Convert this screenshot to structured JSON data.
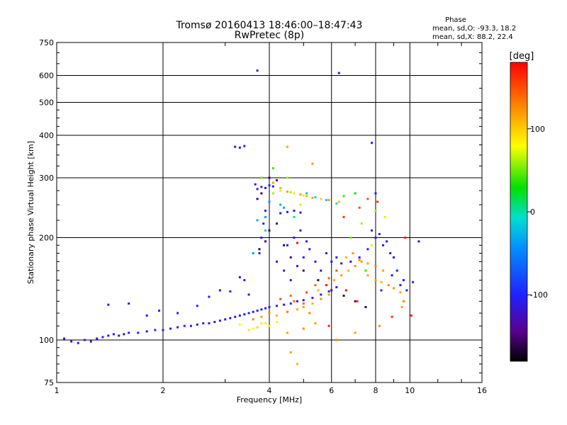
{
  "chart_data": {
    "type": "scatter",
    "title": "Tromsø 20160413 18:46:00–18:47:43",
    "subtitle": "RwPretec (8p)",
    "xlabel": "Frequency [MHz]",
    "ylabel": "Stationary phase Virtual Height [km]",
    "x_scale": "log",
    "y_scale": "log",
    "xlim": [
      1,
      16
    ],
    "ylim": [
      75,
      750
    ],
    "x_ticks": [
      1,
      2,
      4,
      6,
      8,
      10,
      16
    ],
    "x_tick_labels": [
      "1",
      "2",
      "4",
      "6",
      "8",
      "10",
      "16"
    ],
    "y_ticks": [
      75,
      100,
      200,
      300,
      400,
      500,
      600,
      750
    ],
    "y_tick_labels": [
      "75",
      "100",
      "200",
      "300",
      "400",
      "500",
      "600",
      "750"
    ],
    "grid": true,
    "phase_stats": {
      "heading": "Phase",
      "line_o": "mean, sd,O:  -93.3, 18.2",
      "line_x": "mean, sd,X:  88.2, 22.4"
    },
    "colorbar": {
      "label": "[deg]",
      "range": [
        -180,
        180
      ],
      "ticks": [
        100,
        0,
        -100
      ],
      "tick_labels": [
        "100",
        "0",
        "-100"
      ]
    },
    "series": [
      {
        "color_scale": "phase",
        "points": [
          [
            1.05,
            101,
            -110
          ],
          [
            1.1,
            99,
            -105
          ],
          [
            1.15,
            98,
            -115
          ],
          [
            1.2,
            100,
            -100
          ],
          [
            1.25,
            99,
            -120
          ],
          [
            1.3,
            101,
            -110
          ],
          [
            1.35,
            102,
            -105
          ],
          [
            1.4,
            103,
            -115
          ],
          [
            1.45,
            104,
            -100
          ],
          [
            1.5,
            103,
            -110
          ],
          [
            1.55,
            104,
            -120
          ],
          [
            1.6,
            105,
            -105
          ],
          [
            1.7,
            105,
            -110
          ],
          [
            1.8,
            106,
            -115
          ],
          [
            1.9,
            107,
            -100
          ],
          [
            2.0,
            107,
            -110
          ],
          [
            2.1,
            108,
            -105
          ],
          [
            2.2,
            109,
            -115
          ],
          [
            2.3,
            110,
            -100
          ],
          [
            2.4,
            110,
            -110
          ],
          [
            2.5,
            111,
            -120
          ],
          [
            2.6,
            112,
            -105
          ],
          [
            2.7,
            112,
            -110
          ],
          [
            2.8,
            113,
            -115
          ],
          [
            2.9,
            114,
            -100
          ],
          [
            3.0,
            115,
            -110
          ],
          [
            3.1,
            116,
            -120
          ],
          [
            3.2,
            117,
            -105
          ],
          [
            3.3,
            118,
            -110
          ],
          [
            3.4,
            119,
            -115
          ],
          [
            3.5,
            120,
            -100
          ],
          [
            3.6,
            121,
            -110
          ],
          [
            3.7,
            122,
            -105
          ],
          [
            3.8,
            123,
            -115
          ],
          [
            3.9,
            124,
            -100
          ],
          [
            4.0,
            125,
            -110
          ],
          [
            4.2,
            126,
            -105
          ],
          [
            4.4,
            127,
            -115
          ],
          [
            4.6,
            128,
            -100
          ],
          [
            4.8,
            130,
            -110
          ],
          [
            5.0,
            131,
            -120
          ],
          [
            5.3,
            133,
            -105
          ],
          [
            5.6,
            136,
            -110
          ],
          [
            5.9,
            139,
            -115
          ],
          [
            6.2,
            143,
            -100
          ],
          [
            1.6,
            128,
            -110
          ],
          [
            1.8,
            118,
            -105
          ],
          [
            1.95,
            122,
            -100
          ],
          [
            2.2,
            120,
            -115
          ],
          [
            2.5,
            126,
            -110
          ],
          [
            2.7,
            134,
            -105
          ],
          [
            2.9,
            140,
            -110
          ],
          [
            3.1,
            139,
            -100
          ],
          [
            3.3,
            153,
            -115
          ],
          [
            3.5,
            136,
            -110
          ],
          [
            3.2,
            370,
            -100
          ],
          [
            3.3,
            368,
            -110
          ],
          [
            3.4,
            372,
            -105
          ],
          [
            3.7,
            278,
            -110
          ],
          [
            3.8,
            282,
            -100
          ],
          [
            3.9,
            280,
            -115
          ],
          [
            4.0,
            285,
            -105
          ],
          [
            4.1,
            283,
            -110
          ],
          [
            3.65,
            287,
            -100
          ],
          [
            4.3,
            236,
            -110
          ],
          [
            4.5,
            238,
            -105
          ],
          [
            4.7,
            240,
            -100
          ],
          [
            4.9,
            237,
            -115
          ],
          [
            3.75,
            180,
            -110
          ],
          [
            3.8,
            200,
            -105
          ],
          [
            3.85,
            220,
            -100
          ],
          [
            3.9,
            240,
            -115
          ],
          [
            4.2,
            170,
            -105
          ],
          [
            4.4,
            160,
            -110
          ],
          [
            4.6,
            150,
            -100
          ],
          [
            4.8,
            165,
            -115
          ],
          [
            5.0,
            175,
            -110
          ],
          [
            5.2,
            185,
            -105
          ],
          [
            5.4,
            170,
            -100
          ],
          [
            5.6,
            160,
            -115
          ],
          [
            4.5,
            190,
            -110
          ],
          [
            4.7,
            200,
            -105
          ],
          [
            4.9,
            210,
            -100
          ],
          [
            5.1,
            195,
            -115
          ],
          [
            5.8,
            180,
            -110
          ],
          [
            6.0,
            170,
            -105
          ],
          [
            6.2,
            175,
            -100
          ],
          [
            6.4,
            168,
            -115
          ],
          [
            6.8,
            170,
            -110
          ],
          [
            7.2,
            175,
            -105
          ],
          [
            7.6,
            185,
            -100
          ],
          [
            8.0,
            200,
            -115
          ],
          [
            8.4,
            190,
            -110
          ],
          [
            8.8,
            180,
            -105
          ],
          [
            9.2,
            160,
            -100
          ],
          [
            9.6,
            150,
            -115
          ],
          [
            7.8,
            210,
            -110
          ],
          [
            8.2,
            205,
            -105
          ],
          [
            8.6,
            195,
            -100
          ],
          [
            9.0,
            175,
            -115
          ],
          [
            9.4,
            145,
            -110
          ],
          [
            9.8,
            140,
            -105
          ],
          [
            10.2,
            148,
            -100
          ],
          [
            8.9,
            155,
            -115
          ],
          [
            7.8,
            380,
            -110
          ],
          [
            8.0,
            270,
            -105
          ],
          [
            6.3,
            610,
            -100
          ],
          [
            3.7,
            620,
            -115
          ],
          [
            1.4,
            127,
            -110
          ],
          [
            3.4,
            150,
            -105
          ],
          [
            8.3,
            140,
            -100
          ],
          [
            10.6,
            195,
            -115
          ],
          [
            4.1,
            290,
            120
          ],
          [
            4.3,
            280,
            110
          ],
          [
            4.5,
            273,
            120
          ],
          [
            4.7,
            270,
            90
          ],
          [
            4.9,
            268,
            120
          ],
          [
            5.1,
            265,
            110
          ],
          [
            5.3,
            262,
            120
          ],
          [
            5.6,
            260,
            100
          ],
          [
            5.9,
            258,
            120
          ],
          [
            6.3,
            255,
            110
          ],
          [
            4.1,
            270,
            60
          ],
          [
            4.3,
            275,
            70
          ],
          [
            4.6,
            272,
            60
          ],
          [
            5.0,
            266,
            70
          ],
          [
            3.8,
            300,
            50
          ],
          [
            4.1,
            320,
            40
          ],
          [
            4.5,
            300,
            60
          ],
          [
            4.9,
            250,
            70
          ],
          [
            4.0,
            255,
            -40
          ],
          [
            4.3,
            250,
            -30
          ],
          [
            3.9,
            230,
            -40
          ],
          [
            3.7,
            225,
            -30
          ],
          [
            3.6,
            115,
            130
          ],
          [
            3.8,
            117,
            120
          ],
          [
            4.0,
            120,
            125
          ],
          [
            4.2,
            118,
            110
          ],
          [
            4.5,
            121,
            130
          ],
          [
            4.8,
            123,
            115
          ],
          [
            5.0,
            125,
            120
          ],
          [
            5.3,
            128,
            110
          ],
          [
            5.6,
            132,
            125
          ],
          [
            5.9,
            136,
            120
          ],
          [
            5.5,
            140,
            110
          ],
          [
            5.8,
            145,
            130
          ],
          [
            6.1,
            150,
            115
          ],
          [
            6.4,
            155,
            120
          ],
          [
            6.7,
            160,
            110
          ],
          [
            7.0,
            165,
            125
          ],
          [
            7.3,
            170,
            120
          ],
          [
            7.6,
            168,
            115
          ],
          [
            8.0,
            165,
            130
          ],
          [
            8.4,
            160,
            120
          ],
          [
            6.6,
            175,
            110
          ],
          [
            6.9,
            180,
            120
          ],
          [
            7.2,
            172,
            130
          ],
          [
            7.6,
            155,
            115
          ],
          [
            8.0,
            150,
            120
          ],
          [
            8.3,
            148,
            110
          ],
          [
            8.7,
            145,
            125
          ],
          [
            9.0,
            142,
            120
          ],
          [
            9.4,
            138,
            115
          ],
          [
            9.6,
            130,
            130
          ],
          [
            5.9,
            152,
            140
          ],
          [
            6.2,
            160,
            150
          ],
          [
            5.4,
            145,
            140
          ],
          [
            5.1,
            138,
            150
          ],
          [
            4.6,
            135,
            140
          ],
          [
            4.3,
            132,
            150
          ],
          [
            4.7,
            130,
            145
          ],
          [
            5.0,
            128,
            140
          ],
          [
            3.8,
            112,
            90
          ],
          [
            3.6,
            108,
            80
          ],
          [
            4.0,
            110,
            90
          ],
          [
            4.2,
            113,
            80
          ],
          [
            3.5,
            107,
            90
          ],
          [
            3.3,
            111,
            80
          ],
          [
            3.7,
            109,
            95
          ],
          [
            3.9,
            112,
            85
          ],
          [
            5.2,
            120,
            130
          ],
          [
            5.4,
            112,
            120
          ],
          [
            5.0,
            108,
            125
          ],
          [
            4.5,
            105,
            115
          ],
          [
            4.5,
            370,
            115
          ],
          [
            5.3,
            330,
            120
          ],
          [
            4.8,
            85,
            110
          ],
          [
            4.6,
            92,
            120
          ],
          [
            6.2,
            100,
            130
          ],
          [
            7.0,
            105,
            120
          ],
          [
            8.2,
            110,
            125
          ],
          [
            9.5,
            125,
            115
          ],
          [
            5.1,
            270,
            -20
          ],
          [
            5.4,
            263,
            -10
          ],
          [
            5.8,
            258,
            -20
          ],
          [
            6.2,
            252,
            -10
          ],
          [
            7.0,
            270,
            30
          ],
          [
            6.5,
            265,
            40
          ],
          [
            6.8,
            200,
            50
          ],
          [
            7.5,
            160,
            40
          ],
          [
            8.0,
            240,
            60
          ],
          [
            8.5,
            230,
            70
          ],
          [
            7.3,
            220,
            60
          ],
          [
            7.8,
            190,
            70
          ],
          [
            6.6,
            140,
            170
          ],
          [
            7.1,
            130,
            160
          ],
          [
            5.8,
            145,
            170
          ],
          [
            8.9,
            117,
            160
          ],
          [
            7.2,
            245,
            150
          ],
          [
            6.5,
            230,
            160
          ],
          [
            7.6,
            260,
            150
          ],
          [
            8.1,
            255,
            160
          ],
          [
            9.7,
            200,
            170
          ],
          [
            10.1,
            118,
            160
          ],
          [
            4.8,
            193,
            175
          ],
          [
            5.9,
            110,
            165
          ],
          [
            4.0,
            300,
            -160
          ],
          [
            4.2,
            295,
            -150
          ],
          [
            3.8,
            270,
            -160
          ],
          [
            3.7,
            260,
            -150
          ],
          [
            4.4,
            190,
            -160
          ],
          [
            4.6,
            175,
            -150
          ],
          [
            5.0,
            160,
            -155
          ],
          [
            5.5,
            150,
            -160
          ],
          [
            4.2,
            220,
            -150
          ],
          [
            4.0,
            210,
            -160
          ],
          [
            3.9,
            195,
            -150
          ],
          [
            3.75,
            185,
            -160
          ],
          [
            6.0,
            140,
            -150
          ],
          [
            6.5,
            135,
            -160
          ],
          [
            7.0,
            130,
            -150
          ],
          [
            7.5,
            125,
            -160
          ],
          [
            4.4,
            245,
            -30
          ],
          [
            3.9,
            210,
            -20
          ],
          [
            3.6,
            180,
            -40
          ],
          [
            4.7,
            230,
            -10
          ]
        ]
      }
    ]
  }
}
